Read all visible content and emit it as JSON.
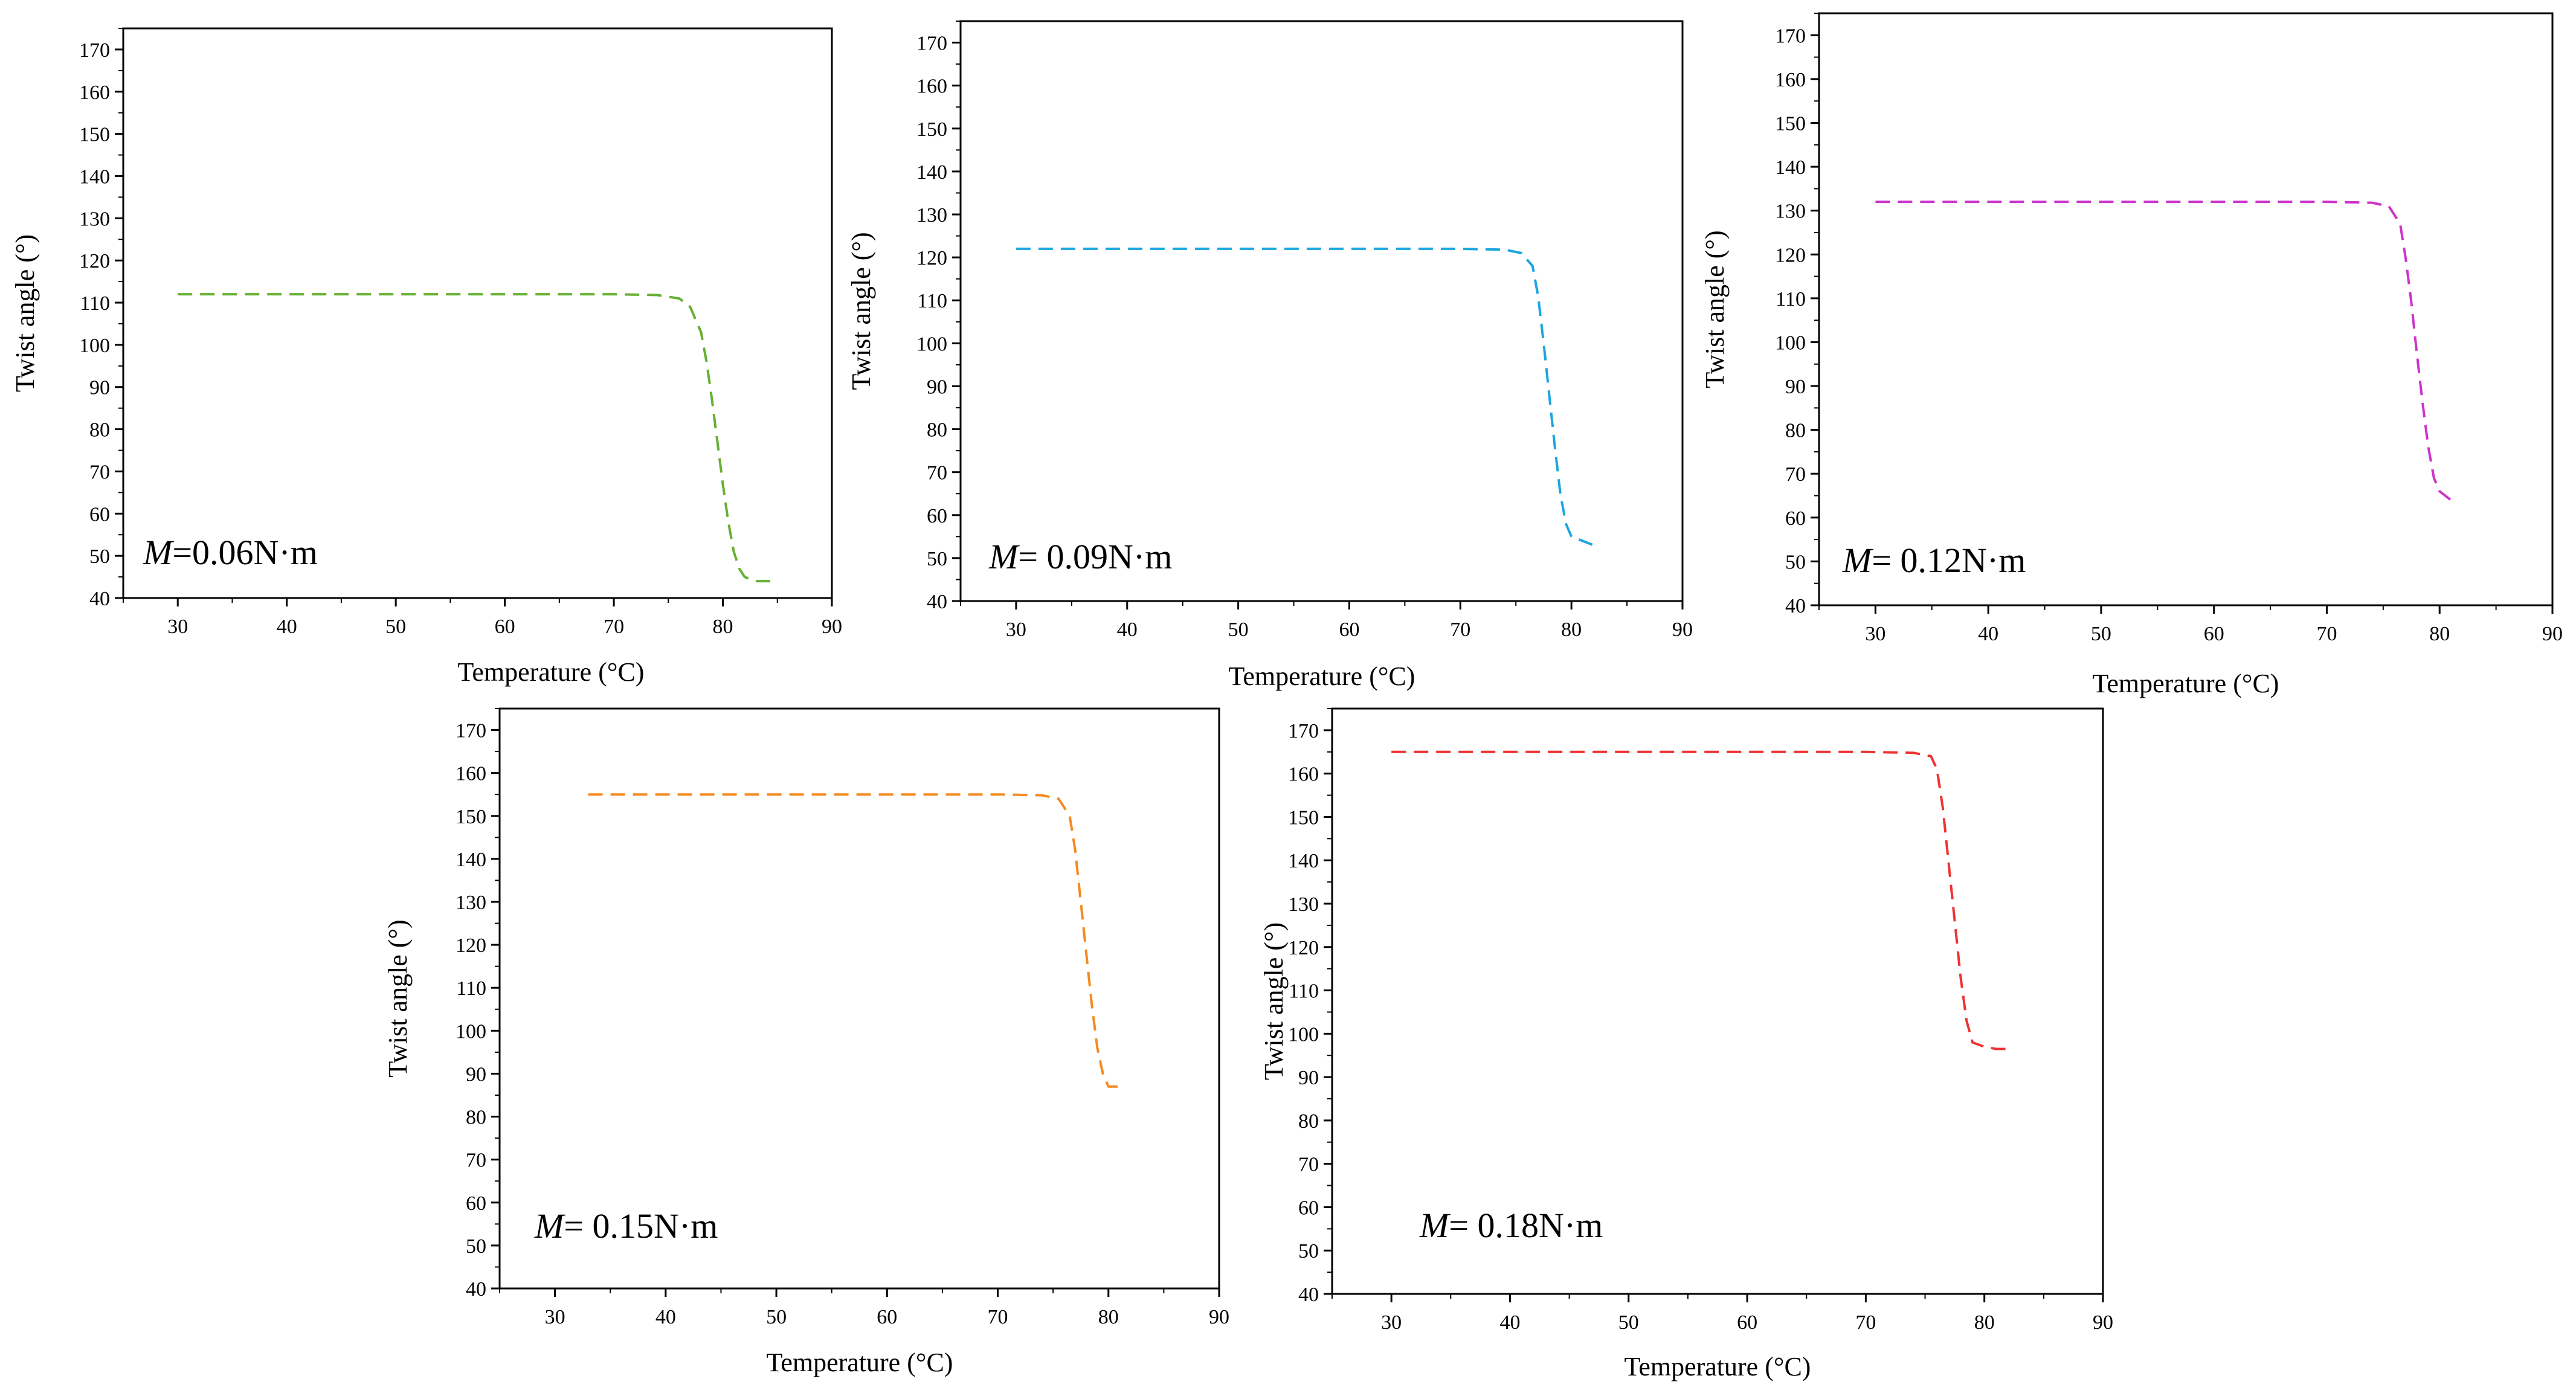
{
  "figure": {
    "x_label": "Temperature (°C)",
    "y_label": "Twist angle (°)"
  },
  "chart_data": [
    {
      "type": "line",
      "title": "",
      "xlabel": "Temperature (°C)",
      "ylabel": "Twist angle (°)",
      "xlim": [
        25,
        90
      ],
      "ylim": [
        40,
        175
      ],
      "x_ticks": [
        30,
        40,
        50,
        60,
        70,
        80,
        90
      ],
      "x_tick_labels": [
        "30",
        "40",
        "50",
        "60",
        "70",
        "80",
        "90"
      ],
      "y_ticks": [
        40,
        50,
        60,
        70,
        80,
        90,
        100,
        110,
        120,
        130,
        140,
        150,
        160,
        170
      ],
      "y_tick_labels": [
        "40",
        "50",
        "60",
        "70",
        "80",
        "90",
        "100",
        "110",
        "120",
        "130",
        "140",
        "150",
        "160",
        "170"
      ],
      "grid": false,
      "annotation": {
        "symbol": "M",
        "text": "=0.06N·m"
      },
      "series": [
        {
          "name": "M=0.06N·m",
          "color": "#66b032",
          "dash": true,
          "x": [
            30,
            40,
            50,
            60,
            70,
            74,
            76,
            77,
            78,
            78.5,
            79,
            79.5,
            80,
            80.5,
            81,
            81.5,
            82,
            83,
            85
          ],
          "y": [
            112,
            112,
            112,
            112,
            112,
            111.8,
            111,
            109,
            103,
            96,
            87,
            77,
            67,
            58,
            51,
            47,
            45,
            44,
            44
          ]
        }
      ]
    },
    {
      "type": "line",
      "title": "",
      "xlabel": "Temperature (°C)",
      "ylabel": "Twist angle (°)",
      "xlim": [
        25,
        90
      ],
      "ylim": [
        40,
        175
      ],
      "x_ticks": [
        30,
        40,
        50,
        60,
        70,
        80,
        90
      ],
      "x_tick_labels": [
        "30",
        "40",
        "50",
        "60",
        "70",
        "80",
        "90"
      ],
      "y_ticks": [
        40,
        50,
        60,
        70,
        80,
        90,
        100,
        110,
        120,
        130,
        140,
        150,
        160,
        170
      ],
      "y_tick_labels": [
        "40",
        "50",
        "60",
        "70",
        "80",
        "90",
        "100",
        "110",
        "120",
        "130",
        "140",
        "150",
        "160",
        "170"
      ],
      "grid": false,
      "annotation": {
        "symbol": "M",
        "text": "= 0.09N·m"
      },
      "series": [
        {
          "name": "M= 0.09N·m",
          "color": "#1aa6e0",
          "dash": true,
          "x": [
            30,
            40,
            50,
            60,
            70,
            74,
            75.5,
            76.5,
            77,
            77.5,
            78,
            78.5,
            79,
            79.5,
            80,
            81,
            82
          ],
          "y": [
            122,
            122,
            122,
            122,
            122,
            121.8,
            121,
            118,
            111,
            100,
            88,
            76,
            65,
            58,
            55,
            54,
            53
          ]
        }
      ]
    },
    {
      "type": "line",
      "title": "",
      "xlabel": "Temperature (°C)",
      "ylabel": "Twist angle (°)",
      "xlim": [
        25,
        90
      ],
      "ylim": [
        40,
        175
      ],
      "x_ticks": [
        30,
        40,
        50,
        60,
        70,
        80,
        90
      ],
      "x_tick_labels": [
        "30",
        "40",
        "50",
        "60",
        "70",
        "80",
        "90"
      ],
      "y_ticks": [
        40,
        50,
        60,
        70,
        80,
        90,
        100,
        110,
        120,
        130,
        140,
        150,
        160,
        170
      ],
      "y_tick_labels": [
        "40",
        "50",
        "60",
        "70",
        "80",
        "90",
        "100",
        "110",
        "120",
        "130",
        "140",
        "150",
        "160",
        "170"
      ],
      "grid": false,
      "annotation": {
        "symbol": "M",
        "text": "= 0.12N·m"
      },
      "series": [
        {
          "name": "M= 0.12N·m",
          "color": "#cc33cc",
          "dash": true,
          "x": [
            30,
            40,
            50,
            60,
            70,
            74,
            75.5,
            76.5,
            77,
            77.5,
            78,
            78.5,
            79,
            79.5,
            80,
            81,
            81.5
          ],
          "y": [
            132,
            132,
            132,
            132,
            132,
            131.8,
            131,
            127,
            119,
            109,
            97,
            86,
            76,
            69,
            66,
            64,
            63.5
          ]
        }
      ]
    },
    {
      "type": "line",
      "title": "",
      "xlabel": "Temperature (°C)",
      "ylabel": "Twist angle (°)",
      "xlim": [
        25,
        90
      ],
      "ylim": [
        40,
        175
      ],
      "x_ticks": [
        30,
        40,
        50,
        60,
        70,
        80,
        90
      ],
      "x_tick_labels": [
        "30",
        "40",
        "50",
        "60",
        "70",
        "80",
        "90"
      ],
      "y_ticks": [
        40,
        50,
        60,
        70,
        80,
        90,
        100,
        110,
        120,
        130,
        140,
        150,
        160,
        170
      ],
      "y_tick_labels": [
        "40",
        "50",
        "60",
        "70",
        "80",
        "90",
        "100",
        "110",
        "120",
        "130",
        "140",
        "150",
        "160",
        "170"
      ],
      "grid": false,
      "annotation": {
        "symbol": "M",
        "text": "= 0.15N·m"
      },
      "series": [
        {
          "name": "M= 0.15N·m",
          "color": "#f58a1f",
          "dash": true,
          "x": [
            33,
            40,
            50,
            60,
            70,
            74,
            75.5,
            76.5,
            77,
            77.5,
            78,
            78.5,
            79,
            79.5,
            80,
            81
          ],
          "y": [
            155,
            155,
            155,
            155,
            155,
            154.8,
            154,
            150,
            142,
            130,
            118,
            106,
            96,
            90,
            87,
            87
          ]
        }
      ]
    },
    {
      "type": "line",
      "title": "",
      "xlabel": "Temperature (°C)",
      "ylabel": "Twist angle (°)",
      "xlim": [
        25,
        90
      ],
      "ylim": [
        40,
        175
      ],
      "x_ticks": [
        30,
        40,
        50,
        60,
        70,
        80,
        90
      ],
      "x_tick_labels": [
        "30",
        "40",
        "50",
        "60",
        "70",
        "80",
        "90"
      ],
      "y_ticks": [
        40,
        50,
        60,
        70,
        80,
        90,
        100,
        110,
        120,
        130,
        140,
        150,
        160,
        170
      ],
      "y_tick_labels": [
        "40",
        "50",
        "60",
        "70",
        "80",
        "90",
        "100",
        "110",
        "120",
        "130",
        "140",
        "150",
        "160",
        "170"
      ],
      "grid": false,
      "annotation": {
        "symbol": "M",
        "text": "= 0.18N·m"
      },
      "series": [
        {
          "name": "M= 0.18N·m",
          "color": "#ee3333",
          "dash": true,
          "x": [
            30,
            40,
            50,
            60,
            70,
            74,
            75.5,
            76,
            76.5,
            77,
            77.5,
            78,
            78.5,
            79,
            80,
            81,
            82
          ],
          "y": [
            165,
            165,
            165,
            165,
            165,
            164.8,
            164,
            161,
            152,
            139,
            126,
            113,
            103,
            98,
            97,
            96.5,
            96.5
          ]
        }
      ]
    }
  ]
}
